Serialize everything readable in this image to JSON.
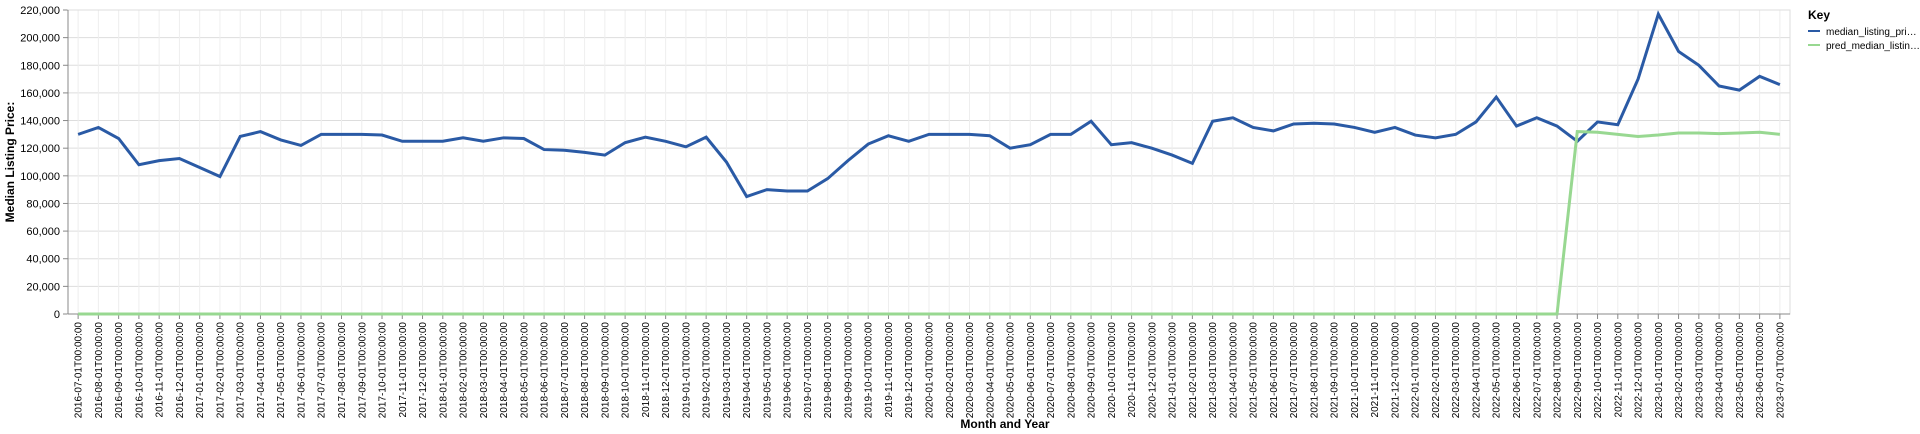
{
  "chart_data": {
    "type": "line",
    "x_label": "Month and Year",
    "y_label": "Median Listing Price:",
    "legend_title": "Key",
    "legend_position": "right",
    "grid": true,
    "categories": [
      "2016-07-01T00:00:00",
      "2016-08-01T00:00:00",
      "2016-09-01T00:00:00",
      "2016-10-01T00:00:00",
      "2016-11-01T00:00:00",
      "2016-12-01T00:00:00",
      "2017-01-01T00:00:00",
      "2017-02-01T00:00:00",
      "2017-03-01T00:00:00",
      "2017-04-01T00:00:00",
      "2017-05-01T00:00:00",
      "2017-06-01T00:00:00",
      "2017-07-01T00:00:00",
      "2017-08-01T00:00:00",
      "2017-09-01T00:00:00",
      "2017-10-01T00:00:00",
      "2017-11-01T00:00:00",
      "2017-12-01T00:00:00",
      "2018-01-01T00:00:00",
      "2018-02-01T00:00:00",
      "2018-03-01T00:00:00",
      "2018-04-01T00:00:00",
      "2018-05-01T00:00:00",
      "2018-06-01T00:00:00",
      "2018-07-01T00:00:00",
      "2018-08-01T00:00:00",
      "2018-09-01T00:00:00",
      "2018-10-01T00:00:00",
      "2018-11-01T00:00:00",
      "2018-12-01T00:00:00",
      "2019-01-01T00:00:00",
      "2019-02-01T00:00:00",
      "2019-03-01T00:00:00",
      "2019-04-01T00:00:00",
      "2019-05-01T00:00:00",
      "2019-06-01T00:00:00",
      "2019-07-01T00:00:00",
      "2019-08-01T00:00:00",
      "2019-09-01T00:00:00",
      "2019-10-01T00:00:00",
      "2019-11-01T00:00:00",
      "2019-12-01T00:00:00",
      "2020-01-01T00:00:00",
      "2020-02-01T00:00:00",
      "2020-03-01T00:00:00",
      "2020-04-01T00:00:00",
      "2020-05-01T00:00:00",
      "2020-06-01T00:00:00",
      "2020-07-01T00:00:00",
      "2020-08-01T00:00:00",
      "2020-09-01T00:00:00",
      "2020-10-01T00:00:00",
      "2020-11-01T00:00:00",
      "2020-12-01T00:00:00",
      "2021-01-01T00:00:00",
      "2021-02-01T00:00:00",
      "2021-03-01T00:00:00",
      "2021-04-01T00:00:00",
      "2021-05-01T00:00:00",
      "2021-06-01T00:00:00",
      "2021-07-01T00:00:00",
      "2021-08-01T00:00:00",
      "2021-09-01T00:00:00",
      "2021-10-01T00:00:00",
      "2021-11-01T00:00:00",
      "2021-12-01T00:00:00",
      "2022-01-01T00:00:00",
      "2022-02-01T00:00:00",
      "2022-03-01T00:00:00",
      "2022-04-01T00:00:00",
      "2022-05-01T00:00:00",
      "2022-06-01T00:00:00",
      "2022-07-01T00:00:00",
      "2022-08-01T00:00:00",
      "2022-09-01T00:00:00",
      "2022-10-01T00:00:00",
      "2022-11-01T00:00:00",
      "2022-12-01T00:00:00",
      "2023-01-01T00:00:00",
      "2023-02-01T00:00:00",
      "2023-03-01T00:00:00",
      "2023-04-01T00:00:00",
      "2023-05-01T00:00:00",
      "2023-06-01T00:00:00",
      "2023-07-01T00:00:00"
    ],
    "series": [
      {
        "name": "median_listing_pri…",
        "color": "#2a5aa5",
        "values": [
          130000,
          135000,
          127000,
          108000,
          111000,
          112500,
          106000,
          99500,
          128500,
          132000,
          126000,
          122000,
          130000,
          130000,
          130000,
          129500,
          125000,
          125000,
          125000,
          127500,
          125000,
          127500,
          127000,
          119000,
          118500,
          117000,
          115000,
          124000,
          128000,
          125000,
          121000,
          128000,
          110000,
          85000,
          90000,
          89000,
          89000,
          98000,
          111000,
          123000,
          129000,
          125000,
          130000,
          130000,
          130000,
          129000,
          120000,
          122500,
          130000,
          130000,
          139500,
          122500,
          124000,
          120000,
          115000,
          109000,
          139500,
          142000,
          135000,
          132500,
          137500,
          138000,
          137500,
          135000,
          131500,
          135000,
          129500,
          127500,
          130000,
          139000,
          157000,
          136000,
          142000,
          136000,
          125000,
          139000,
          137000,
          170000,
          217000,
          190000,
          180000,
          165000,
          162000,
          172000,
          166000
        ]
      },
      {
        "name": "pred_median_listin…",
        "color": "#98d891",
        "values": [
          0,
          0,
          0,
          0,
          0,
          0,
          0,
          0,
          0,
          0,
          0,
          0,
          0,
          0,
          0,
          0,
          0,
          0,
          0,
          0,
          0,
          0,
          0,
          0,
          0,
          0,
          0,
          0,
          0,
          0,
          0,
          0,
          0,
          0,
          0,
          0,
          0,
          0,
          0,
          0,
          0,
          0,
          0,
          0,
          0,
          0,
          0,
          0,
          0,
          0,
          0,
          0,
          0,
          0,
          0,
          0,
          0,
          0,
          0,
          0,
          0,
          0,
          0,
          0,
          0,
          0,
          0,
          0,
          0,
          0,
          0,
          0,
          0,
          0,
          132000,
          131500,
          130000,
          128500,
          129500,
          131000,
          131000,
          130500,
          131000,
          131500,
          130000
        ]
      }
    ],
    "ylim": [
      0,
      220000
    ],
    "yticks": [
      0,
      {
        "value": 20000,
        "label": "20,000"
      },
      {
        "value": 40000,
        "label": "40,000"
      },
      {
        "value": 60000,
        "label": "60,000"
      },
      {
        "value": 80000,
        "label": "80,000"
      },
      {
        "value": 100000,
        "label": "100,000"
      },
      {
        "value": 120000,
        "label": "120,000"
      },
      {
        "value": 140000,
        "label": "140,000"
      },
      {
        "value": 160000,
        "label": "160,000"
      },
      {
        "value": 180000,
        "label": "180,000"
      },
      {
        "value": 200000,
        "label": "200,000"
      },
      {
        "value": 220000,
        "label": "220,000"
      }
    ]
  }
}
